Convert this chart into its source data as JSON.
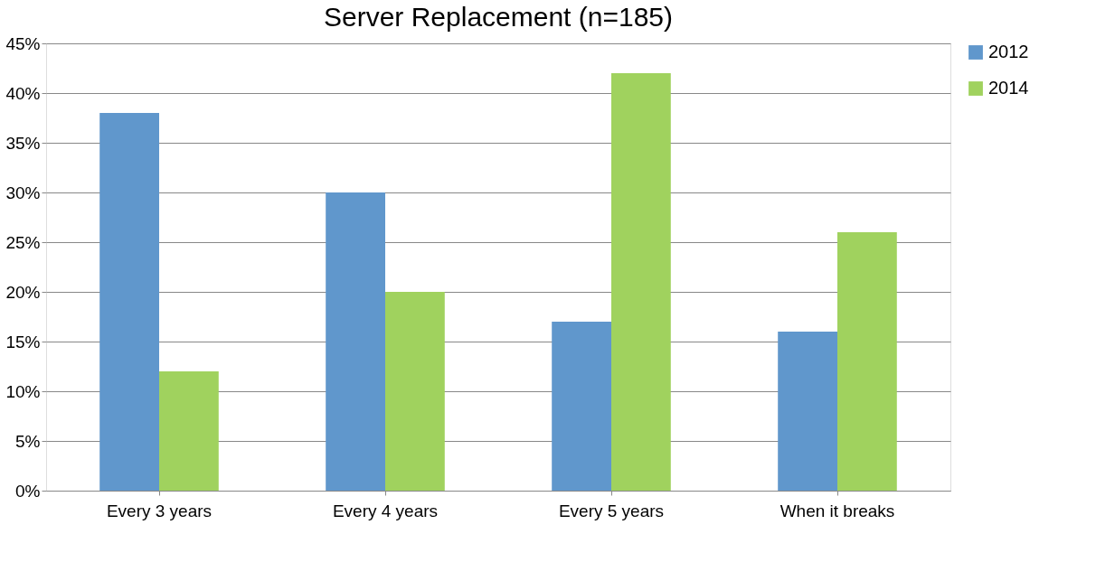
{
  "chart_data": {
    "type": "bar",
    "title": "Server Replacement (n=185)",
    "categories": [
      "Every 3 years",
      "Every 4 years",
      "Every 5 years",
      "When it breaks"
    ],
    "series": [
      {
        "name": "2012",
        "color": "#6097cc",
        "values": [
          38,
          30,
          17,
          16
        ]
      },
      {
        "name": "2014",
        "color": "#a0d25e",
        "values": [
          12,
          20,
          42,
          26
        ]
      }
    ],
    "ylim": [
      0,
      45
    ],
    "yticks": [
      {
        "value": 0,
        "label": "0%"
      },
      {
        "value": 5,
        "label": "5%"
      },
      {
        "value": 10,
        "label": "10%"
      },
      {
        "value": 15,
        "label": "15%"
      },
      {
        "value": 20,
        "label": "20%"
      },
      {
        "value": 25,
        "label": "25%"
      },
      {
        "value": 30,
        "label": "30%"
      },
      {
        "value": 35,
        "label": "35%"
      },
      {
        "value": 40,
        "label": "40%"
      },
      {
        "value": 45,
        "label": "45%"
      }
    ],
    "grid": "y",
    "legend": "right"
  }
}
